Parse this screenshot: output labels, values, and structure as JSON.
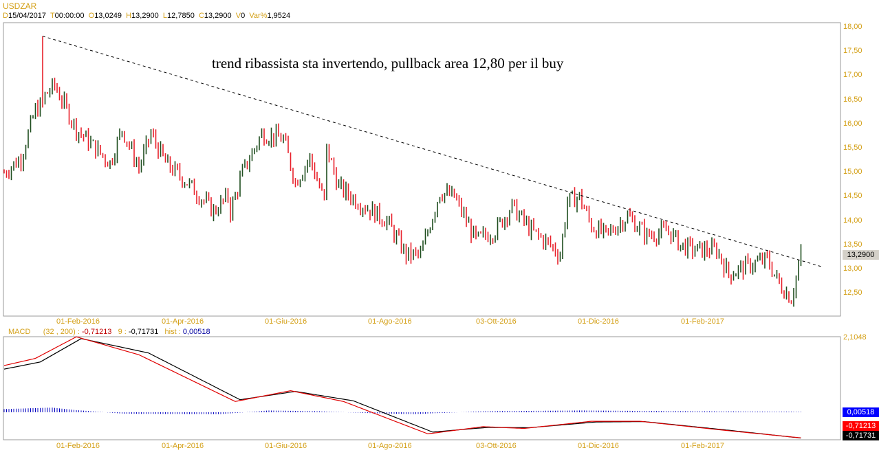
{
  "symbol": "USDZAR",
  "ohlc_header": {
    "d_label": "D",
    "date": "15/04/2017",
    "t_label": "T",
    "time": "00:00:00",
    "o_label": "O",
    "open": "13,0249",
    "h_label": "H",
    "high": "13,2900",
    "l_label": "L",
    "low": "12,7850",
    "c_label": "C",
    "close": "13,2900",
    "v_label": "V",
    "volume": "0",
    "var_label": "Var%",
    "var": "1,9524"
  },
  "annotation": "trend ribassista sta invertendo, pullback area 12,80 per il buy",
  "colors": {
    "up": "#1e4d1e",
    "down": "#e8202a",
    "axis": "#d4a017",
    "macd": "#e00000",
    "signal": "#000000",
    "hist": "#0000c0"
  },
  "chart_data": [
    {
      "type": "candlestick",
      "title": "USDZAR",
      "ylim": [
        12.2,
        18.1
      ],
      "yticks": [
        "18,00",
        "17,50",
        "17,00",
        "16,50",
        "16,00",
        "15,50",
        "15,00",
        "14,50",
        "14,00",
        "13,50",
        "13,00",
        "12,50"
      ],
      "xticks": [
        "01-Feb-2016",
        "01-Apr-2016",
        "01-Giu-2016",
        "01-Ago-2016",
        "03-Ott-2016",
        "01-Dic-2016",
        "01-Feb-2017"
      ],
      "last_price": "13,2900",
      "close_path": [
        [
          0,
          15.0
        ],
        [
          7,
          15.3
        ],
        [
          13,
          16.3
        ],
        [
          16,
          16.4
        ],
        [
          17,
          16.6
        ],
        [
          21,
          16.8
        ],
        [
          30,
          15.9
        ],
        [
          44,
          15.2
        ],
        [
          49,
          15.9
        ],
        [
          56,
          15.1
        ],
        [
          61,
          15.8
        ],
        [
          67,
          15.2
        ],
        [
          76,
          14.8
        ],
        [
          87,
          14.2
        ],
        [
          93,
          14.5
        ],
        [
          94,
          14.2
        ],
        [
          99,
          15.0
        ],
        [
          107,
          15.8
        ],
        [
          116,
          15.7
        ],
        [
          121,
          14.8
        ],
        [
          127,
          15.3
        ],
        [
          133,
          14.4
        ],
        [
          134,
          15.5
        ],
        [
          139,
          14.7
        ],
        [
          147,
          14.4
        ],
        [
          159,
          14.0
        ],
        [
          167,
          13.3
        ],
        [
          173,
          13.3
        ],
        [
          181,
          14.6
        ],
        [
          187,
          14.5
        ],
        [
          196,
          13.6
        ],
        [
          204,
          13.8
        ],
        [
          211,
          14.3
        ],
        [
          219,
          13.8
        ],
        [
          227,
          13.5
        ],
        [
          231,
          13.3
        ],
        [
          234,
          14.4
        ],
        [
          239,
          14.5
        ],
        [
          244,
          13.9
        ],
        [
          250,
          13.7
        ],
        [
          259,
          14.1
        ],
        [
          267,
          13.7
        ],
        [
          276,
          13.8
        ],
        [
          281,
          13.5
        ],
        [
          287,
          13.4
        ],
        [
          296,
          13.4
        ],
        [
          301,
          12.9
        ],
        [
          310,
          13.1
        ],
        [
          317,
          13.2
        ],
        [
          322,
          12.7
        ],
        [
          327,
          12.4
        ],
        [
          331,
          13.29
        ]
      ],
      "spike_high": 17.82,
      "trendline": {
        "from": [
          16,
          17.82
        ],
        "to": [
          340,
          13.05
        ]
      }
    },
    {
      "type": "line",
      "title": "MACD",
      "params": "(32 , 200) :",
      "macd_value": "-0,71213",
      "signal_label": "9 :",
      "signal_value": "-0,71731",
      "hist_label": "hist :",
      "hist_value": "0,00518",
      "ytop": "2,1048",
      "ylim": [
        -0.8,
        2.1048
      ],
      "macd_path": [
        [
          0,
          1.3
        ],
        [
          13,
          1.5
        ],
        [
          30,
          2.1
        ],
        [
          56,
          1.6
        ],
        [
          96,
          0.3
        ],
        [
          119,
          0.6
        ],
        [
          141,
          0.3
        ],
        [
          176,
          -0.6
        ],
        [
          199,
          -0.4
        ],
        [
          216,
          -0.45
        ],
        [
          244,
          -0.25
        ],
        [
          264,
          -0.25
        ],
        [
          299,
          -0.5
        ],
        [
          331,
          -0.712
        ]
      ],
      "signal_path": [
        [
          0,
          1.2
        ],
        [
          15,
          1.4
        ],
        [
          32,
          2.05
        ],
        [
          60,
          1.65
        ],
        [
          98,
          0.35
        ],
        [
          121,
          0.58
        ],
        [
          145,
          0.32
        ],
        [
          178,
          -0.55
        ],
        [
          201,
          -0.42
        ],
        [
          218,
          -0.43
        ],
        [
          246,
          -0.27
        ],
        [
          266,
          -0.26
        ],
        [
          301,
          -0.5
        ],
        [
          331,
          -0.717
        ]
      ],
      "hist_path": [
        [
          0,
          0.08
        ],
        [
          20,
          0.12
        ],
        [
          30,
          0.05
        ],
        [
          50,
          -0.05
        ],
        [
          90,
          -0.06
        ],
        [
          110,
          0.04
        ],
        [
          130,
          0.02
        ],
        [
          150,
          -0.03
        ],
        [
          170,
          -0.06
        ],
        [
          200,
          0.02
        ],
        [
          240,
          0.04
        ],
        [
          280,
          0.02
        ],
        [
          331,
          0.005
        ]
      ]
    }
  ]
}
